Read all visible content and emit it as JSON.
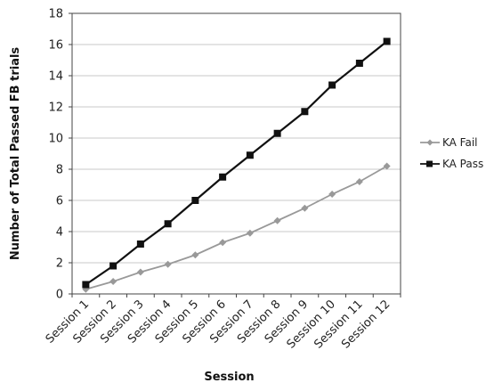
{
  "chart_data": {
    "type": "line",
    "categories": [
      "Session 1",
      "Session 2",
      "Session 3",
      "Session 4",
      "Session 5",
      "Session 6",
      "Session 7",
      "Session 8",
      "Session 9",
      "Session 10",
      "Session 11",
      "Session 12"
    ],
    "series": [
      {
        "name": "KA Fail",
        "color": "#999999",
        "marker": "diamond",
        "values": [
          0.3,
          0.8,
          1.4,
          1.9,
          2.5,
          3.3,
          3.9,
          4.7,
          5.5,
          6.4,
          7.2,
          8.2
        ]
      },
      {
        "name": "KA Pass",
        "color": "#111111",
        "marker": "square",
        "values": [
          0.6,
          1.8,
          3.2,
          4.5,
          6.0,
          7.5,
          8.9,
          10.3,
          11.7,
          13.4,
          14.8,
          16.2
        ]
      }
    ],
    "xlabel": "Session",
    "ylabel": "Number of Total Passed FB trials",
    "ylim": [
      0,
      18
    ],
    "yticks": [
      0,
      2,
      4,
      6,
      8,
      10,
      12,
      14,
      16,
      18
    ],
    "grid": true,
    "legend_position": "right"
  }
}
